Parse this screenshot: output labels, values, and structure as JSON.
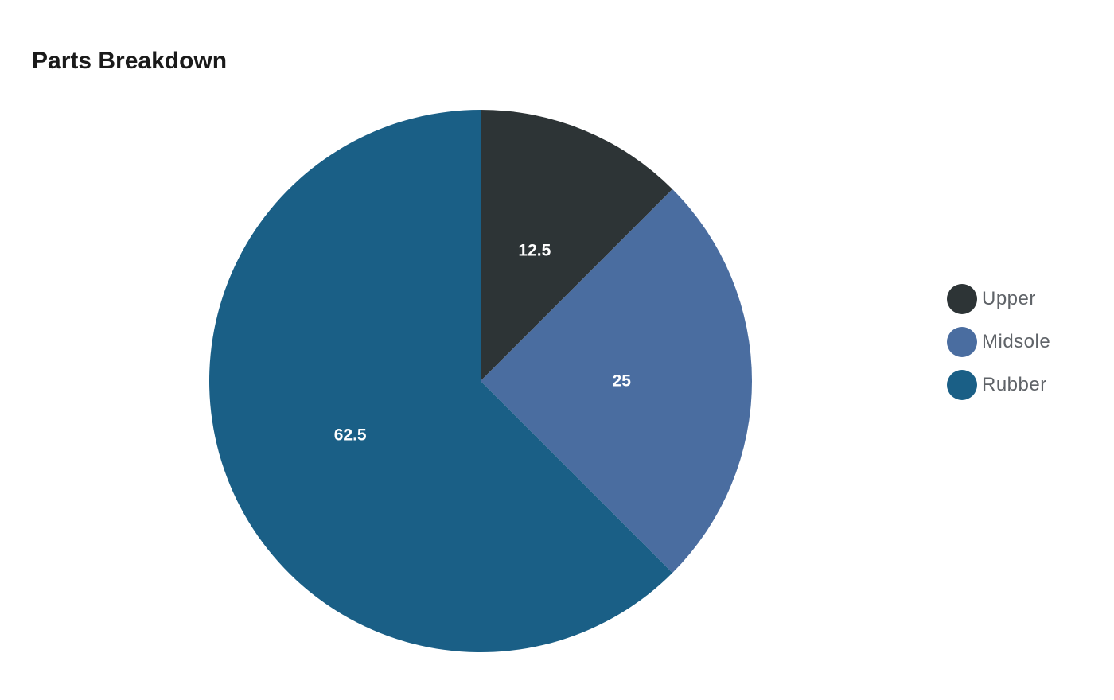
{
  "chart_data": {
    "type": "pie",
    "title": "Parts Breakdown",
    "categories": [
      "Upper",
      "Midsole",
      "Rubber"
    ],
    "values": [
      12.5,
      25,
      62.5
    ],
    "colors": [
      "#2d3436",
      "#4a6da0",
      "#1a5f86"
    ],
    "data_labels": [
      "12.5",
      "25",
      "62.5"
    ],
    "label_color": "#ffffff",
    "start_angle": "12 o'clock",
    "direction": "clockwise",
    "legend": {
      "position": "right",
      "marker": "circle",
      "items": [
        {
          "label": "Upper",
          "color": "#2d3436"
        },
        {
          "label": "Midsole",
          "color": "#4a6da0"
        },
        {
          "label": "Rubber",
          "color": "#1a5f86"
        }
      ]
    }
  }
}
